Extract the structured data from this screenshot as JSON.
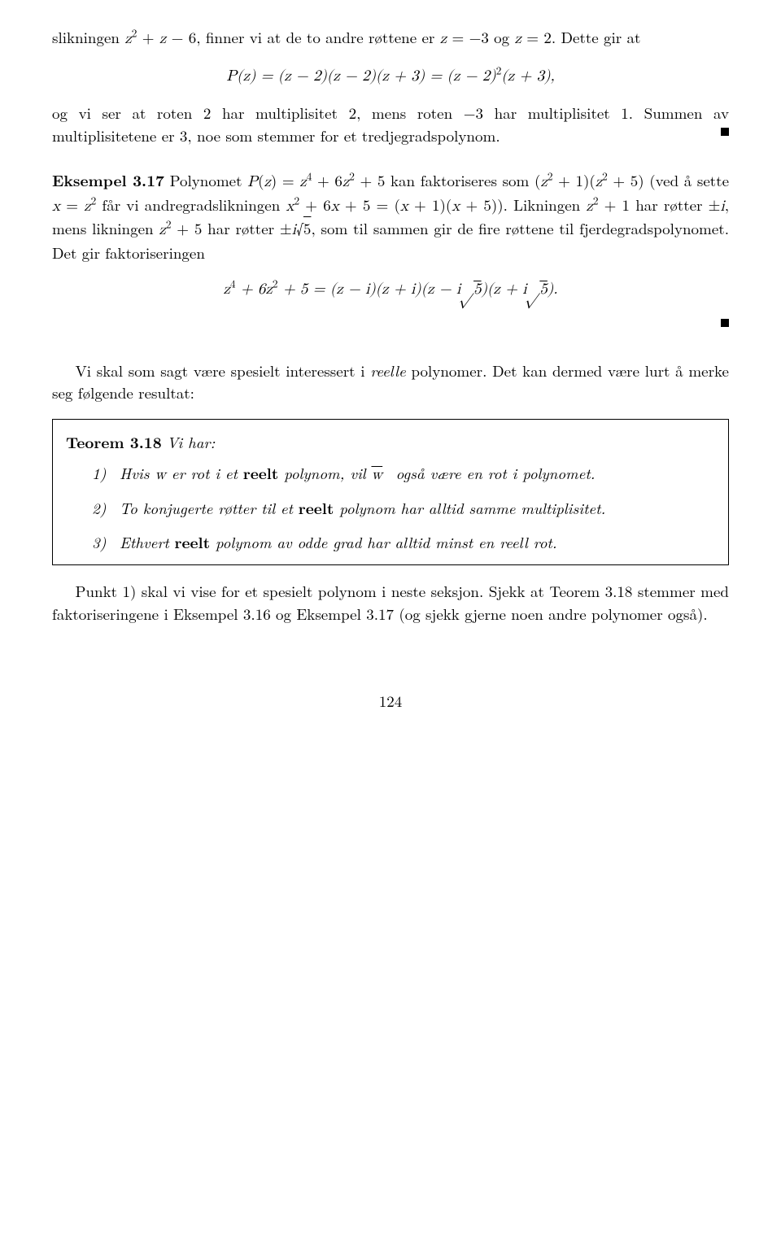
{
  "para1": {
    "text_html": "slikningen <span class='math'>z</span><sup>2</sup> + <span class='math'>z</span> − 6, finner vi at de to andre røttene er <span class='math'>z</span> = −3 og <span class='math'>z</span> = 2. Dette gir at"
  },
  "eq1": {
    "text_html": "<span class='math'>P</span>(<span class='math'>z</span>) = (<span class='math'>z</span> − 2)(<span class='math'>z</span> − 2)(<span class='math'>z</span> + 3) = (<span class='math'>z</span> − 2)<sup>2</sup>(<span class='math'>z</span> + 3),"
  },
  "para2": {
    "text_html": "og vi ser at roten 2 har multiplisitet 2, mens roten −3 har multiplisitet 1. Summen av multiplisitetene er 3, noe som stemmer for et tredjegradspolynom."
  },
  "example317": {
    "label": "Eksempel 3.17",
    "body_html": "Polynomet <span class='math'>P</span>(<span class='math'>z</span>) = <span class='math'>z</span><sup>4</sup> + 6<span class='math'>z</span><sup>2</sup> + 5 kan faktoriseres som (<span class='math'>z</span><sup>2</sup> + 1)(<span class='math'>z</span><sup>2</sup> + 5) (ved å sette <span class='math'>x</span> = <span class='math'>z</span><sup>2</sup> får vi andregradslikningen <span class='math'>x</span><sup>2</sup> + 6<span class='math'>x</span> + 5 = (<span class='math'>x</span> + 1)(<span class='math'>x</span> + 5)). Likningen <span class='math'>z</span><sup>2</sup> + 1 har røtter ±<span class='math'>i</span>, mens likningen <span class='math'>z</span><sup>2</sup> + 5 har røtter ±<span class='math'>i</span>√<span class='overline'>5</span>, som til sammen gir de fire røttene til fjerdegradspolynomet. Det gir faktoriseringen"
  },
  "eq2": {
    "text_html": "<span class='math'>z</span><sup>4</sup> + 6<span class='math'>z</span><sup>2</sup> + 5 = (<span class='math'>z</span> − <span class='math'>i</span>)(<span class='math'>z</span> + <span class='math'>i</span>)(<span class='math'>z</span> − <span class='math'>i</span>√<span class='overline'>5</span>)(<span class='math'>z</span> + <span class='math'>i</span>√<span class='overline'>5</span>)."
  },
  "para3": {
    "text_html": "Vi skal som sagt være spesielt interessert i <span class='italic'>reelle</span> polynomer. Det kan dermed være lurt å merke seg følgende resultat:"
  },
  "theorem318": {
    "label": "Teorem 3.18",
    "lead": "Vi har:",
    "items": [
      "Hvis <span class='math'>w</span> er rot i et <span class='bold rm'>reelt</span> polynom, vil <span class='overline math'>w</span>&nbsp; også være en rot i polynomet.",
      "To konjugerte røtter til et <span class='bold rm'>reelt</span> polynom har alltid samme multiplisitet.",
      "Ethvert <span class='bold rm'>reelt</span> polynom av odde grad har alltid minst en reell rot."
    ]
  },
  "para4": {
    "text_html": "Punkt 1) skal vi vise for et spesielt polynom i neste seksjon. Sjekk at Teorem 3.18 stemmer med faktoriseringene i Eksempel 3.16 og Eksempel 3.17 (og sjekk gjerne noen andre polynomer også)."
  },
  "page_number": "124"
}
